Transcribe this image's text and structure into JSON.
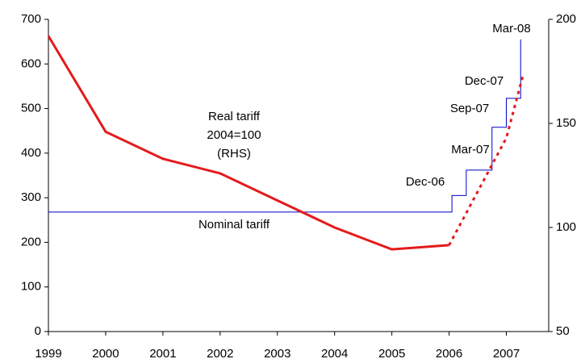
{
  "chart_data": {
    "type": "line",
    "xlim": [
      1999,
      2007.74
    ],
    "xticks": [
      1999,
      2000,
      2001,
      2002,
      2003,
      2004,
      2005,
      2006,
      2007
    ],
    "ylim": [
      0,
      700
    ],
    "yticks": [
      0,
      100,
      200,
      300,
      400,
      500,
      600,
      700
    ],
    "y2lim": [
      50,
      200
    ],
    "y2ticks": [
      50,
      100,
      150,
      200
    ],
    "series": [
      {
        "color": "#0000cc",
        "step": true,
        "width": 1,
        "x": [
          1999,
          2006.05,
          2006.3,
          2006.75,
          2007.0,
          2007.25
        ],
        "values": [
          268,
          305,
          362,
          458,
          523,
          655
        ]
      },
      {
        "color": "#e41a1c",
        "axis": "y2",
        "width": 3,
        "x": [
          1999,
          2000,
          2001,
          2002,
          2003,
          2004,
          2005,
          2006
        ],
        "values": [
          192,
          146,
          133,
          126,
          113,
          100,
          89.5,
          91.5
        ]
      },
      {
        "color": "#e41a1c",
        "axis": "y2",
        "width": 3,
        "linestyle": "dotted",
        "x": [
          2006,
          2007.0,
          2007.3
        ],
        "values": [
          91.5,
          143,
          174
        ]
      }
    ],
    "annotations": [
      {
        "lines": [
          "Real tariff",
          "2004=100",
          "(RHS)"
        ]
      },
      {
        "lines": [
          "Nominal tariff"
        ]
      },
      {
        "lines": [
          "Dec-06"
        ]
      },
      {
        "lines": [
          "Mar-07"
        ]
      },
      {
        "lines": [
          "Sep-07"
        ]
      },
      {
        "lines": [
          "Dec-07"
        ]
      },
      {
        "lines": [
          "Mar-08"
        ]
      }
    ]
  }
}
